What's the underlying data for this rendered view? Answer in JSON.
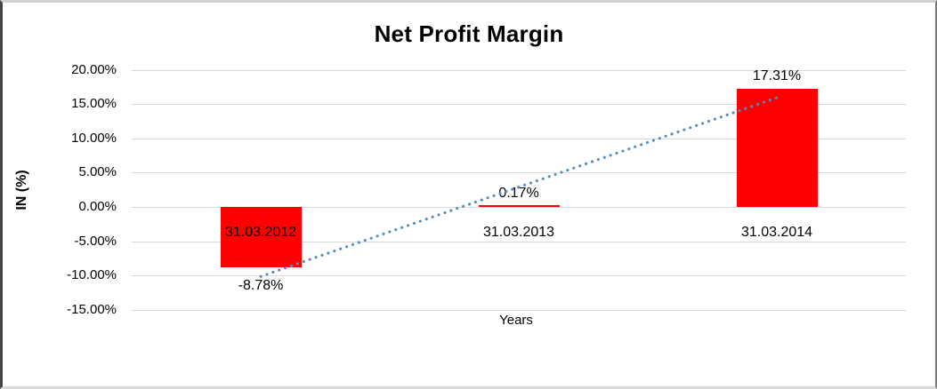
{
  "chart_data": {
    "type": "bar",
    "title": "Net Profit Margin",
    "xlabel": "Years",
    "ylabel": "IN (%)",
    "categories": [
      "31.03.2012",
      "31.03.2013",
      "31.03.2014"
    ],
    "values": [
      -8.78,
      0.17,
      17.31
    ],
    "data_labels": [
      "-8.78%",
      "0.17%",
      "17.31%"
    ],
    "y_ticks": [
      {
        "value": 20,
        "label": "20.00%"
      },
      {
        "value": 15,
        "label": "15.00%"
      },
      {
        "value": 10,
        "label": "10.00%"
      },
      {
        "value": 5,
        "label": "5.00%"
      },
      {
        "value": 0,
        "label": "0.00%"
      },
      {
        "value": -5,
        "label": "-5.00%"
      },
      {
        "value": -10,
        "label": "-10.00%"
      },
      {
        "value": -15,
        "label": "-15.00%"
      }
    ],
    "ylim": [
      -15,
      20
    ],
    "grid": true,
    "legend": "none",
    "bar_color": "#FF0000",
    "gridline_color": "#D9D9D9",
    "text_color": "#000000",
    "trendline": {
      "type": "linear",
      "style": "dotted",
      "color": "#548DC5",
      "start_value": -10.15,
      "end_value": 15.95
    }
  }
}
